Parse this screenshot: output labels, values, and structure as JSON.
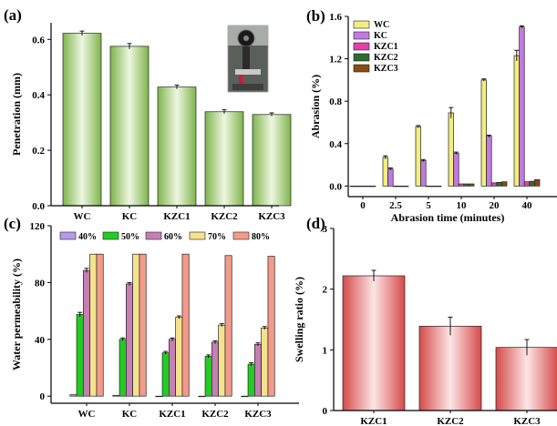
{
  "chart_data": [
    {
      "panel": "(a)",
      "type": "bar",
      "xlabel": "",
      "ylabel": "Penetration (mm)",
      "categories": [
        "WC",
        "KC",
        "KZC1",
        "KZC2",
        "KZC3"
      ],
      "values": [
        0.622,
        0.575,
        0.428,
        0.339,
        0.329
      ],
      "errors": [
        0.008,
        0.01,
        0.007,
        0.007,
        0.006
      ],
      "yticks": [
        "0.0",
        "0.2",
        "0.4",
        "0.6"
      ],
      "ylim": [
        0,
        0.66
      ],
      "bar_color": "#8bbf5a",
      "inset_photo": true
    },
    {
      "panel": "(b)",
      "type": "bar",
      "xlabel": "Abrasion time (minutes)",
      "ylabel": "Abrasion (%)",
      "categories": [
        "0",
        "2.5",
        "5",
        "10",
        "20",
        "40"
      ],
      "yticks": [
        "0.0",
        "0.4",
        "0.8",
        "1.2",
        "1.6"
      ],
      "ylim": [
        -0.1,
        1.6
      ],
      "legend_position": "top-left",
      "series": [
        {
          "name": "WC",
          "color": "#f2ee80",
          "values": [
            0.0,
            0.27,
            0.56,
            0.69,
            1.0,
            1.23
          ],
          "errors": [
            0,
            0.015,
            0.01,
            0.05,
            0.01,
            0.05
          ]
        },
        {
          "name": "KC",
          "color": "#c27ae0",
          "values": [
            0.0,
            0.16,
            0.24,
            0.31,
            0.47,
            1.5
          ],
          "errors": [
            0,
            0.01,
            0.01,
            0.01,
            0.01,
            0.01
          ]
        },
        {
          "name": "KZC1",
          "color": "#e83ea6",
          "values": [
            0.0,
            0.0,
            0.0,
            0.02,
            0.03,
            0.04
          ],
          "errors": [
            0,
            0,
            0,
            0,
            0,
            0
          ]
        },
        {
          "name": "KZC2",
          "color": "#2e6b2e",
          "values": [
            0.0,
            0.0,
            0.0,
            0.02,
            0.035,
            0.045
          ],
          "errors": [
            0,
            0,
            0,
            0,
            0,
            0
          ]
        },
        {
          "name": "KZC3",
          "color": "#8a4a10",
          "values": [
            0.0,
            0.0,
            0.0,
            0.02,
            0.04,
            0.06
          ],
          "errors": [
            0,
            0,
            0,
            0,
            0,
            0
          ]
        }
      ]
    },
    {
      "panel": "(c)",
      "type": "bar",
      "xlabel": "",
      "ylabel": "Water permeability (%)",
      "categories": [
        "WC",
        "KC",
        "KZC1",
        "KZC2",
        "KZC3"
      ],
      "yticks": [
        "0",
        "40",
        "80",
        "120"
      ],
      "ylim": [
        -5,
        120
      ],
      "legend_position": "top",
      "series": [
        {
          "name": "40%",
          "color": "#b89ae8",
          "values": [
            1,
            0.5,
            0,
            0,
            0
          ],
          "errors": [
            0,
            0,
            0,
            0,
            0
          ]
        },
        {
          "name": "50%",
          "color": "#22cc22",
          "values": [
            57.5,
            40,
            30.5,
            28,
            22.5
          ],
          "errors": [
            1.5,
            1,
            1,
            1,
            1
          ]
        },
        {
          "name": "60%",
          "color": "#c67fb5",
          "values": [
            88.5,
            79,
            40,
            38,
            36.5
          ],
          "errors": [
            1.5,
            1,
            1,
            1,
            1
          ]
        },
        {
          "name": "70%",
          "color": "#f5e28c",
          "values": [
            100,
            100,
            55.5,
            50,
            48
          ],
          "errors": [
            0,
            0,
            1,
            1,
            1
          ]
        },
        {
          "name": "80%",
          "color": "#f49a8a",
          "values": [
            100,
            100,
            100,
            99,
            98.5
          ],
          "errors": [
            0,
            0,
            0,
            0,
            0
          ]
        }
      ]
    },
    {
      "panel": "(d)",
      "type": "bar",
      "xlabel": "",
      "ylabel": "Swelling ratio (%)",
      "categories": [
        "KZC1",
        "KZC2",
        "KZC3"
      ],
      "values": [
        2.22,
        1.39,
        1.04
      ],
      "errors": [
        0.09,
        0.15,
        0.13
      ],
      "yticks": [
        "0",
        "1",
        "2",
        "3"
      ],
      "ylim": [
        0,
        3
      ],
      "bar_color": "#dc5a5a"
    }
  ]
}
